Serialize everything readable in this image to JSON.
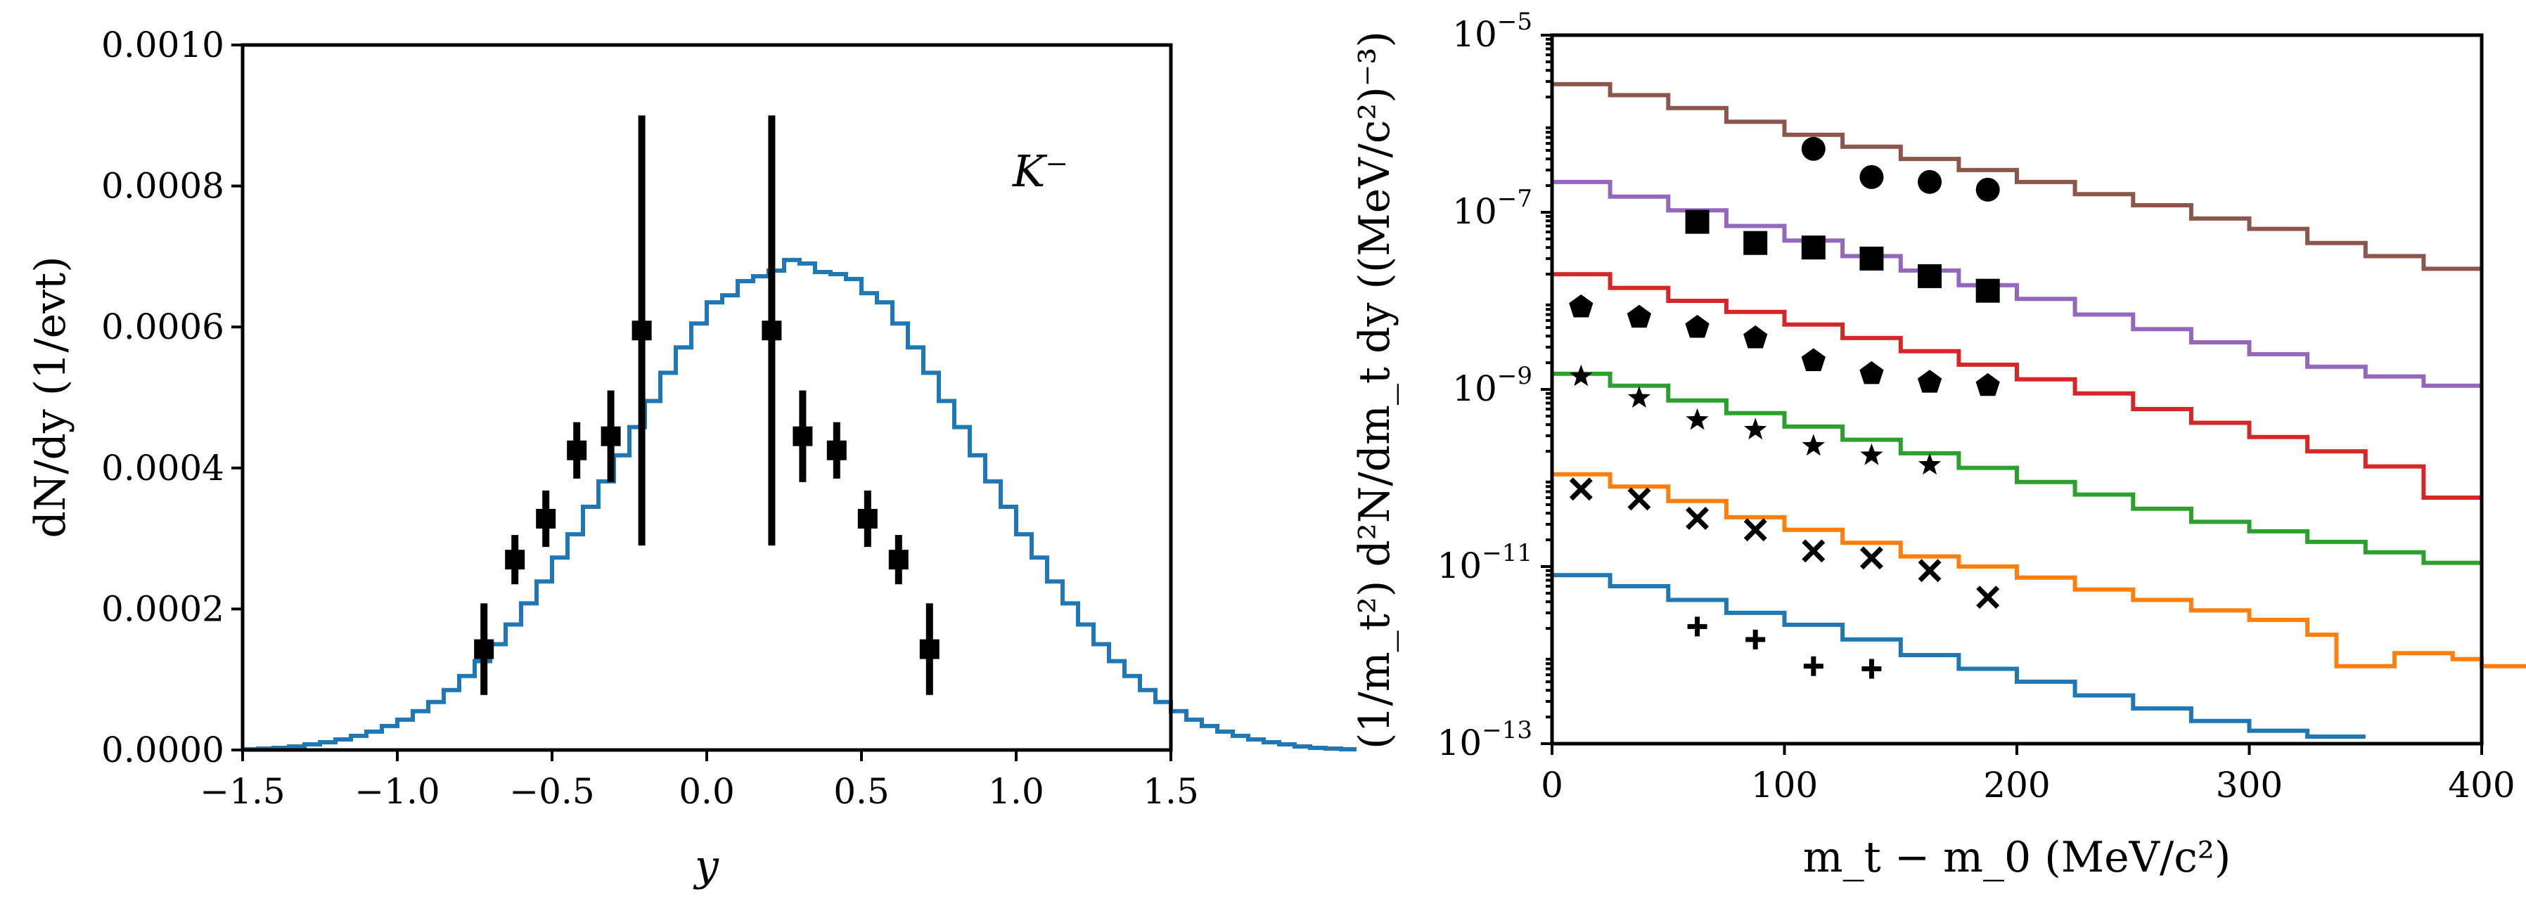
{
  "colors": {
    "blue": "#1f77b4",
    "orange": "#ff7f0e",
    "green": "#2ca02c",
    "red": "#d62728",
    "purple": "#9467bd",
    "brown": "#8c564b",
    "data": "#000000"
  },
  "chart_data": [
    {
      "type": "step",
      "annotation": "K⁻",
      "xlabel": "y",
      "ylabel": "dN/dy (1/evt)",
      "xlim": [
        -1.5,
        1.5
      ],
      "ylim": [
        0,
        0.001
      ],
      "xticks": [
        -1.5,
        -1.0,
        -0.5,
        0.0,
        0.5,
        1.0,
        1.5
      ],
      "xtick_labels": [
        "−1.5",
        "−1.0",
        "−0.5",
        "0.0",
        "0.5",
        "1.0",
        "1.5"
      ],
      "yticks": [
        0,
        0.0002,
        0.0004,
        0.0006,
        0.0008,
        0.001
      ],
      "ytick_labels": [
        "0.0000",
        "0.0002",
        "0.0004",
        "0.0006",
        "0.0008",
        "0.0010"
      ],
      "grid": false,
      "model": {
        "color": "#1f77b4",
        "bin_width": 0.05,
        "x_start": -1.5,
        "values": [
          1e-06,
          2e-06,
          3e-06,
          5e-06,
          8e-06,
          1.1e-05,
          1.5e-05,
          2e-05,
          2.6e-05,
          3.4e-05,
          4.3e-05,
          5.5e-05,
          6.8e-05,
          8.5e-05,
          0.000105,
          0.000126,
          0.00015,
          0.000178,
          0.000208,
          0.000239,
          0.000273,
          0.000306,
          0.000345,
          0.000381,
          0.000418,
          0.000458,
          0.000495,
          0.000535,
          0.000571,
          0.000605,
          0.000635,
          0.000645,
          0.000665,
          0.000672,
          0.00068,
          0.000695,
          0.00069,
          0.000678,
          0.000675,
          0.000668,
          0.000648,
          0.000635,
          0.000605,
          0.000571,
          0.000535,
          0.000495,
          0.000458,
          0.000418,
          0.000381,
          0.000345,
          0.000306,
          0.000273,
          0.000239,
          0.000208,
          0.000178,
          0.00015,
          0.000126,
          0.000105,
          8.5e-05,
          6.8e-05,
          5.5e-05,
          4.3e-05,
          3.4e-05,
          2.6e-05,
          2e-05,
          1.5e-05,
          1.1e-05,
          8e-06,
          5e-06,
          3e-06,
          2e-06,
          1e-06
        ]
      },
      "data": [
        {
          "x": -0.72,
          "y": 0.000143,
          "err": 6.5e-05
        },
        {
          "x": -0.62,
          "y": 0.00027,
          "err": 3.5e-05
        },
        {
          "x": -0.52,
          "y": 0.000328,
          "err": 4e-05
        },
        {
          "x": -0.42,
          "y": 0.000425,
          "err": 4e-05
        },
        {
          "x": -0.31,
          "y": 0.000445,
          "err": 6.5e-05
        },
        {
          "x": -0.21,
          "y": 0.000595,
          "err": 0.000305
        },
        {
          "x": 0.21,
          "y": 0.000595,
          "err": 0.000305
        },
        {
          "x": 0.31,
          "y": 0.000445,
          "err": 6.5e-05
        },
        {
          "x": 0.42,
          "y": 0.000425,
          "err": 4e-05
        },
        {
          "x": 0.52,
          "y": 0.000328,
          "err": 4e-05
        },
        {
          "x": 0.62,
          "y": 0.00027,
          "err": 3.5e-05
        },
        {
          "x": 0.72,
          "y": 0.000143,
          "err": 6.5e-05
        }
      ]
    },
    {
      "type": "step",
      "xlabel": "m_t − m_0 (MeV/c²)",
      "ylabel": "(1/m_t²) d²N/dm_t dy ((MeV/c²)⁻³)",
      "xlim": [
        0,
        400
      ],
      "ylim": [
        1e-13,
        1e-05
      ],
      "yscale": "log",
      "xticks": [
        0,
        100,
        200,
        300,
        400
      ],
      "xtick_labels": [
        "0",
        "100",
        "200",
        "300",
        "400"
      ],
      "yticks": [
        1e-13,
        1e-11,
        1e-09,
        1e-07,
        1e-05
      ],
      "ytick_exponents": [
        "−13",
        "−11",
        "−9",
        "−7",
        "−5"
      ],
      "ytick_base": "10",
      "grid": false,
      "bin_width": 25,
      "series": [
        {
          "color": "#8c564b",
          "marker": "circle",
          "model": [
            2.8e-06,
            2.1e-06,
            1.5e-06,
            1.05e-06,
            7.5e-07,
            5.5e-07,
            4e-07,
            3e-07,
            2.2e-07,
            1.6e-07,
            1.2e-07,
            8.5e-08,
            6.5e-08,
            4.5e-08,
            3.2e-08,
            2.3e-08
          ],
          "data": [
            [
              112.5,
              5.2e-07
            ],
            [
              137.5,
              2.5e-07
            ],
            [
              162.5,
              2.2e-07
            ],
            [
              187.5,
              1.8e-07
            ]
          ]
        },
        {
          "color": "#9467bd",
          "marker": "square",
          "model": [
            2.2e-07,
            1.5e-07,
            1.05e-07,
            7e-08,
            4.8e-08,
            3.2e-08,
            2.2e-08,
            1.5e-08,
            1.05e-08,
            7e-09,
            4.8e-09,
            3.4e-09,
            2.5e-09,
            1.8e-09,
            1.4e-09,
            1.1e-09
          ],
          "data": [
            [
              62.5,
              7.8e-08
            ],
            [
              87.5,
              4.5e-08
            ],
            [
              112.5,
              4e-08
            ],
            [
              137.5,
              3e-08
            ],
            [
              162.5,
              1.9e-08
            ],
            [
              187.5,
              1.3e-08
            ]
          ]
        },
        {
          "color": "#d62728",
          "marker": "pentagon",
          "model": [
            2e-08,
            1.4e-08,
            1e-08,
            7.5e-09,
            5.4e-09,
            3.8e-09,
            2.7e-09,
            1.9e-09,
            1.3e-09,
            9e-10,
            6e-10,
            4.2e-10,
            2.9e-10,
            2e-10,
            1.35e-10,
            6e-11
          ],
          "data": [
            [
              12.5,
              8.5e-09
            ],
            [
              37.5,
              6.5e-09
            ],
            [
              62.5,
              5e-09
            ],
            [
              87.5,
              3.8e-09
            ],
            [
              112.5,
              2.1e-09
            ],
            [
              137.5,
              1.5e-09
            ],
            [
              162.5,
              1.2e-09
            ],
            [
              187.5,
              1.1e-09
            ]
          ]
        },
        {
          "color": "#2ca02c",
          "marker": "star",
          "model": [
            1.5e-09,
            1.1e-09,
            7.5e-10,
            5.4e-10,
            3.8e-10,
            2.7e-10,
            1.9e-10,
            1.3e-10,
            9e-11,
            6.5e-11,
            4.5e-11,
            3.2e-11,
            2.5e-11,
            1.9e-11,
            1.45e-11,
            1.1e-11
          ],
          "data": [
            [
              12.5,
              1.4e-09
            ],
            [
              37.5,
              8e-10
            ],
            [
              62.5,
              4.5e-10
            ],
            [
              87.5,
              3.5e-10
            ],
            [
              112.5,
              2.3e-10
            ],
            [
              137.5,
              1.8e-10
            ],
            [
              162.5,
              1.4e-10
            ]
          ]
        },
        {
          "color": "#ff7f0e",
          "marker": "x",
          "model": [
            1.1e-10,
            8e-11,
            5.5e-11,
            3.6e-11,
            2.6e-11,
            1.85e-11,
            1.3e-11,
            1e-11,
            7.5e-12,
            5.5e-12,
            4.2e-12,
            3.2e-12,
            2.5e-12,
            1.7e-12,
            1.7e-12,
            7.5e-13,
            1.05e-12,
            9e-13,
            7.5e-13
          ],
          "data": [
            [
              12.5,
              7.5e-11
            ],
            [
              37.5,
              5.8e-11
            ],
            [
              62.5,
              3.5e-11
            ],
            [
              87.5,
              2.6e-11
            ],
            [
              112.5,
              1.5e-11
            ],
            [
              137.5,
              1.25e-11
            ],
            [
              162.5,
              9e-12
            ],
            [
              187.5,
              4.5e-12
            ]
          ],
          "bin_starts": [
            0,
            25,
            50,
            75,
            100,
            125,
            150,
            175,
            200,
            225,
            250,
            275,
            300,
            325,
            325,
            337.5,
            362.5,
            387.5,
            400
          ],
          "custom_steps": true
        },
        {
          "color": "#1f77b4",
          "marker": "plus",
          "model": [
            8e-12,
            6e-12,
            4.2e-12,
            3e-12,
            2.2e-12,
            1.5e-12,
            1e-12,
            7e-13,
            5e-13,
            3.5e-13,
            2.5e-13,
            1.8e-13,
            1.4e-13,
            1.2e-13
          ],
          "data": [
            [
              62.5,
              2.1e-12
            ],
            [
              87.5,
              1.5e-12
            ],
            [
              112.5,
              7.5e-13
            ],
            [
              137.5,
              7e-13
            ]
          ]
        }
      ]
    }
  ]
}
